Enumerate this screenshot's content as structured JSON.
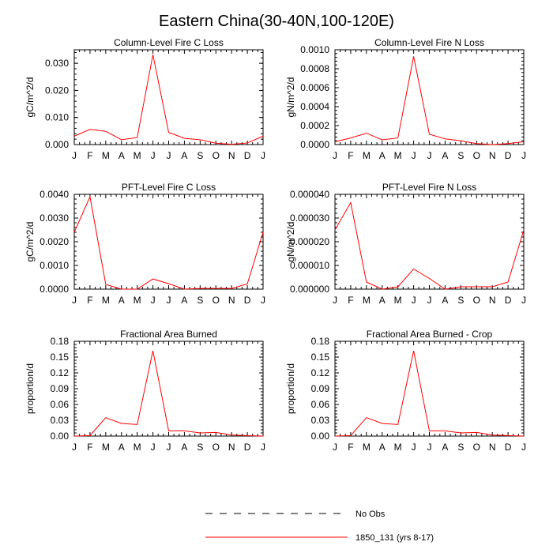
{
  "figure_title": "Eastern China(30-40N,100-120E)",
  "legend": {
    "entries": [
      {
        "label": "No Obs",
        "color": "#000000",
        "dash": true
      },
      {
        "label": "1850_131 (yrs 8-17)",
        "color": "#ff0000",
        "dash": false
      }
    ]
  },
  "chart_data": [
    {
      "type": "line",
      "title": "Column-Level Fire C Loss",
      "ylabel": "gC/m^2/d",
      "categories": [
        "J",
        "F",
        "M",
        "A",
        "M",
        "J",
        "J",
        "A",
        "S",
        "O",
        "N",
        "D",
        "J"
      ],
      "ylim": [
        0,
        0.035
      ],
      "yticks": [
        "0.000",
        "0.010",
        "0.020",
        "0.030"
      ],
      "yticks_values": [
        0,
        0.01,
        0.02,
        0.03
      ],
      "series": [
        {
          "name": "1850_131 (yrs 8-17)",
          "color": "#ff0000",
          "values": [
            0.0031,
            0.0056,
            0.0049,
            0.0018,
            0.0026,
            0.0332,
            0.0045,
            0.0023,
            0.0018,
            0.0005,
            0.0001,
            0.0006,
            0.0031
          ]
        }
      ]
    },
    {
      "type": "line",
      "title": "Column-Level Fire N Loss",
      "ylabel": "gN/m^2/d",
      "categories": [
        "J",
        "F",
        "M",
        "A",
        "M",
        "J",
        "J",
        "A",
        "S",
        "O",
        "N",
        "D",
        "J"
      ],
      "ylim": [
        0,
        0.001
      ],
      "yticks": [
        "0.0000",
        "0.0002",
        "0.0004",
        "0.0006",
        "0.0008",
        "0.0010"
      ],
      "yticks_values": [
        0,
        0.0002,
        0.0004,
        0.0006,
        0.0008,
        0.001
      ],
      "series": [
        {
          "name": "1850_131 (yrs 8-17)",
          "color": "#ff0000",
          "values": [
            3e-05,
            7e-05,
            0.00012,
            5e-05,
            7e-05,
            0.00093,
            0.00011,
            6e-05,
            4e-05,
            1e-05,
            0.0,
            1e-05,
            3e-05
          ]
        }
      ]
    },
    {
      "type": "line",
      "title": "PFT-Level Fire C Loss",
      "ylabel": "gC/m^2/d",
      "categories": [
        "J",
        "F",
        "M",
        "A",
        "M",
        "J",
        "J",
        "A",
        "S",
        "O",
        "N",
        "D",
        "J"
      ],
      "ylim": [
        0,
        0.004
      ],
      "yticks": [
        "0.0000",
        "0.0010",
        "0.0020",
        "0.0030",
        "0.0040"
      ],
      "yticks_values": [
        0,
        0.001,
        0.002,
        0.003,
        0.004
      ],
      "series": [
        {
          "name": "1850_131 (yrs 8-17)",
          "color": "#ff0000",
          "values": [
            0.0024,
            0.0039,
            0.0002,
            0.0,
            0.0,
            0.00043,
            0.00023,
            0.0,
            3e-05,
            3e-05,
            3e-05,
            0.00022,
            0.0024
          ]
        }
      ]
    },
    {
      "type": "line",
      "title": "PFT-Level Fire N Loss",
      "ylabel": "gN/m^2/d",
      "categories": [
        "J",
        "F",
        "M",
        "A",
        "M",
        "J",
        "J",
        "A",
        "S",
        "O",
        "N",
        "D",
        "J"
      ],
      "ylim": [
        0,
        4e-05
      ],
      "yticks": [
        "0.000000",
        "0.000010",
        "0.000020",
        "0.000030",
        "0.000040"
      ],
      "yticks_values": [
        0,
        1e-05,
        2e-05,
        3e-05,
        4e-05
      ],
      "series": [
        {
          "name": "1850_131 (yrs 8-17)",
          "color": "#ff0000",
          "values": [
            2.5e-05,
            3.65e-05,
            3e-06,
            0.0,
            1e-06,
            8.5e-06,
            4.5e-06,
            0.0,
            1e-06,
            1e-06,
            1e-06,
            3e-06,
            2.5e-05
          ]
        }
      ]
    },
    {
      "type": "line",
      "title": "Fractional Area Burned",
      "ylabel": "proportion/d",
      "categories": [
        "J",
        "F",
        "M",
        "A",
        "M",
        "J",
        "J",
        "A",
        "S",
        "O",
        "N",
        "D",
        "J"
      ],
      "ylim": [
        0,
        0.18
      ],
      "yticks": [
        "0.00",
        "0.03",
        "0.06",
        "0.09",
        "0.12",
        "0.15",
        "0.18"
      ],
      "yticks_values": [
        0,
        0.03,
        0.06,
        0.09,
        0.12,
        0.15,
        0.18
      ],
      "series": [
        {
          "name": "1850_131 (yrs 8-17)",
          "color": "#ff0000",
          "values": [
            0.0,
            0.001,
            0.035,
            0.024,
            0.022,
            0.162,
            0.01,
            0.01,
            0.006,
            0.007,
            0.002,
            0.001,
            0.0
          ]
        }
      ]
    },
    {
      "type": "line",
      "title": "Fractional Area Burned - Crop",
      "ylabel": "proportion/d",
      "categories": [
        "J",
        "F",
        "M",
        "A",
        "M",
        "J",
        "J",
        "A",
        "S",
        "O",
        "N",
        "D",
        "J"
      ],
      "ylim": [
        0,
        0.18
      ],
      "yticks": [
        "0.00",
        "0.03",
        "0.06",
        "0.09",
        "0.12",
        "0.15",
        "0.18"
      ],
      "yticks_values": [
        0,
        0.03,
        0.06,
        0.09,
        0.12,
        0.15,
        0.18
      ],
      "series": [
        {
          "name": "1850_131 (yrs 8-17)",
          "color": "#ff0000",
          "values": [
            0.0,
            0.001,
            0.035,
            0.024,
            0.022,
            0.162,
            0.01,
            0.01,
            0.006,
            0.007,
            0.002,
            0.001,
            0.0
          ]
        }
      ]
    }
  ]
}
